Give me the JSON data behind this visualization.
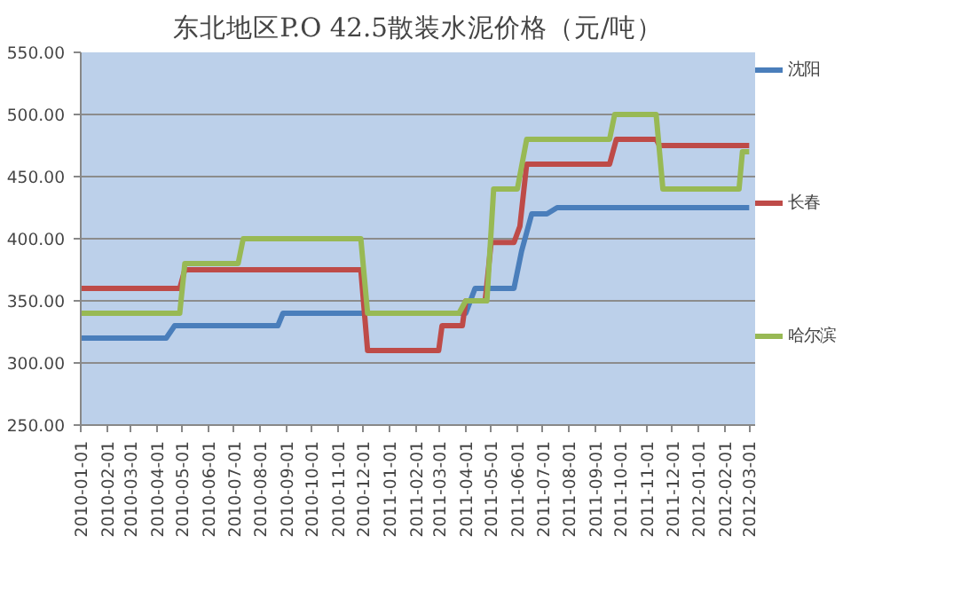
{
  "chart_data": {
    "type": "line",
    "title": "东北地区P.O 42.5散装水泥价格（元/吨）",
    "xlim": [
      "2010-01-01",
      "2012-03-08"
    ],
    "xticks": [
      "2010-01-01",
      "2010-02-01",
      "2010-03-01",
      "2010-04-01",
      "2010-05-01",
      "2010-06-01",
      "2010-07-01",
      "2010-08-01",
      "2010-09-01",
      "2010-10-01",
      "2010-11-01",
      "2010-12-01",
      "2011-01-01",
      "2011-02-01",
      "2011-03-01",
      "2011-04-01",
      "2011-05-01",
      "2011-06-01",
      "2011-07-01",
      "2011-08-01",
      "2011-09-01",
      "2011-10-01",
      "2011-11-01",
      "2011-12-01",
      "2012-01-01",
      "2012-02-01",
      "2012-03-01"
    ],
    "ylim": [
      250,
      550
    ],
    "yticks": [
      {
        "value": 250,
        "label": "250.00"
      },
      {
        "value": 300,
        "label": "300.00"
      },
      {
        "value": 350,
        "label": "350.00"
      },
      {
        "value": 400,
        "label": "400.00"
      },
      {
        "value": 450,
        "label": "450.00"
      },
      {
        "value": 500,
        "label": "500.00"
      },
      {
        "value": 550,
        "label": "550.00"
      }
    ],
    "grid": "y",
    "legend": "right",
    "marker": "none",
    "line_style": "solid",
    "series": [
      {
        "name": "沈阳",
        "color": "#4a7ebb",
        "x": [
          "2010-01-01",
          "2010-04-12",
          "2010-04-22",
          "2010-08-22",
          "2010-08-28",
          "2011-04-01",
          "2011-04-12",
          "2011-05-28",
          "2011-06-06",
          "2011-06-18",
          "2011-07-06",
          "2011-07-18",
          "2012-03-01"
        ],
        "values": [
          320,
          320,
          330,
          330,
          340,
          340,
          360,
          360,
          390,
          420,
          420,
          425,
          425
        ]
      },
      {
        "name": "长春",
        "color": "#be4b48",
        "x": [
          "2010-01-01",
          "2010-04-28",
          "2010-05-04",
          "2010-11-28",
          "2010-12-06",
          "2011-02-28",
          "2011-03-04",
          "2011-03-28",
          "2011-04-01",
          "2011-04-24",
          "2011-05-01",
          "2011-05-28",
          "2011-06-04",
          "2011-06-12",
          "2011-09-18",
          "2011-09-26",
          "2011-11-12",
          "2011-11-16",
          "2012-03-01"
        ],
        "values": [
          360,
          360,
          375,
          375,
          310,
          310,
          330,
          330,
          350,
          350,
          397,
          397,
          410,
          460,
          460,
          480,
          480,
          475,
          475
        ]
      },
      {
        "name": "哈尔滨",
        "color": "#98b954",
        "x": [
          "2010-01-01",
          "2010-04-28",
          "2010-05-04",
          "2010-07-06",
          "2010-07-12",
          "2010-11-28",
          "2010-12-06",
          "2011-03-24",
          "2011-04-01",
          "2011-04-26",
          "2011-05-04",
          "2011-06-01",
          "2011-06-12",
          "2011-09-18",
          "2011-09-24",
          "2011-11-12",
          "2011-11-20",
          "2012-02-18",
          "2012-02-22",
          "2012-03-01"
        ],
        "values": [
          340,
          340,
          380,
          380,
          400,
          400,
          340,
          340,
          350,
          350,
          440,
          440,
          480,
          480,
          500,
          500,
          440,
          440,
          470,
          470
        ]
      }
    ]
  }
}
